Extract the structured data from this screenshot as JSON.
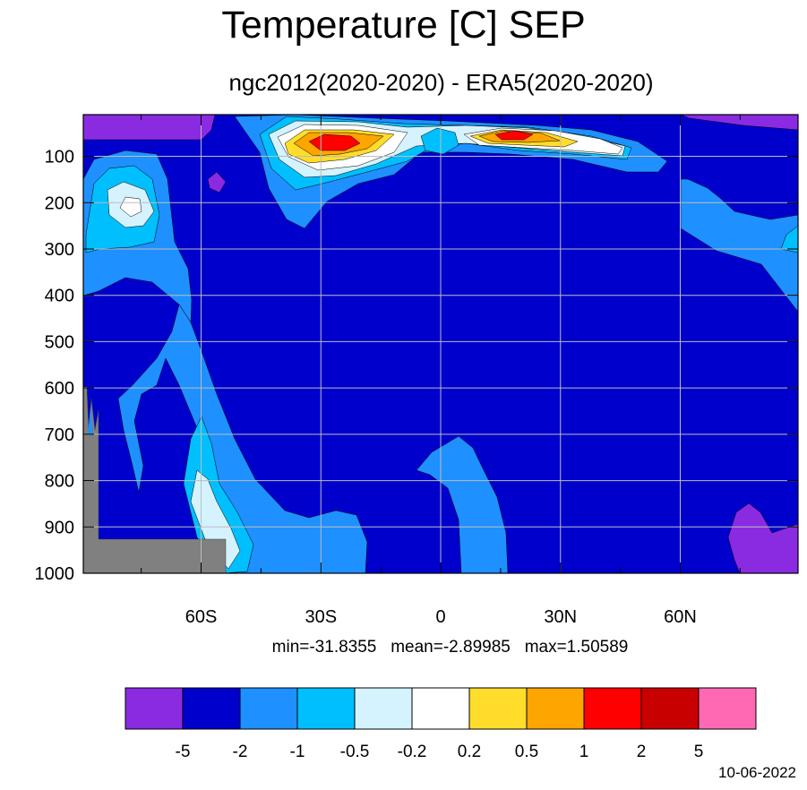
{
  "chart_data": {
    "type": "heatmap",
    "title": "Temperature [C] SEP",
    "subtitle": "ngc2012(2020-2020) - ERA5(2020-2020)",
    "x_ticks": [
      "60S",
      "30S",
      "0",
      "30N",
      "60N"
    ],
    "y_ticks": [
      "100",
      "200",
      "300",
      "400",
      "500",
      "600",
      "700",
      "800",
      "900",
      "1000"
    ],
    "stats": {
      "min": "min=-31.8355",
      "mean": "mean=-2.89985",
      "max": "max=1.50589"
    },
    "colorbar": {
      "colors": [
        "#8a2be2",
        "#0000cd",
        "#1e90ff",
        "#00bfff",
        "#d4f3ff",
        "#ffffff",
        "#ffdd2a",
        "#ffa500",
        "#ff0000",
        "#c80000",
        "#ff69b4"
      ],
      "levels": [
        "-5",
        "-2",
        "-1",
        "-0.5",
        "-0.2",
        "0.2",
        "0.5",
        "1",
        "2",
        "5"
      ]
    },
    "grid": true,
    "missing_color": "#808080"
  },
  "footer": {
    "date": "10-06-2022"
  }
}
